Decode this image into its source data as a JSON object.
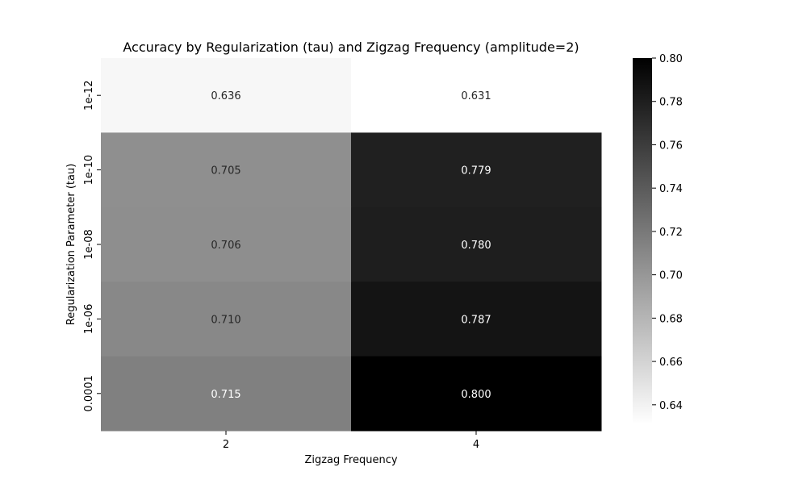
{
  "chart_data": {
    "type": "heatmap",
    "title": "Accuracy by Regularization (tau) and Zigzag Frequency (amplitude=2)",
    "xlabel": "Zigzag Frequency",
    "ylabel": "Regularization Parameter (tau)",
    "x_categories": [
      "2",
      "4"
    ],
    "y_categories": [
      "1e-12",
      "1e-10",
      "1e-08",
      "1e-06",
      "0.0001"
    ],
    "values": [
      [
        0.636,
        0.631
      ],
      [
        0.705,
        0.779
      ],
      [
        0.706,
        0.78
      ],
      [
        0.71,
        0.787
      ],
      [
        0.715,
        0.8
      ]
    ],
    "value_labels": [
      [
        "0.636",
        "0.631"
      ],
      [
        "0.705",
        "0.779"
      ],
      [
        "0.706",
        "0.780"
      ],
      [
        "0.710",
        "0.787"
      ],
      [
        "0.715",
        "0.800"
      ]
    ],
    "colorbar": {
      "min": 0.631,
      "max": 0.8,
      "ticks": [
        0.64,
        0.66,
        0.68,
        0.7,
        0.72,
        0.74,
        0.76,
        0.78,
        0.8
      ],
      "tick_labels": [
        "0.64",
        "0.66",
        "0.68",
        "0.70",
        "0.72",
        "0.74",
        "0.76",
        "0.78",
        "0.80"
      ],
      "colors": [
        "#ffffff",
        "#000000"
      ]
    },
    "grid": false,
    "legend": "colorbar-right"
  }
}
